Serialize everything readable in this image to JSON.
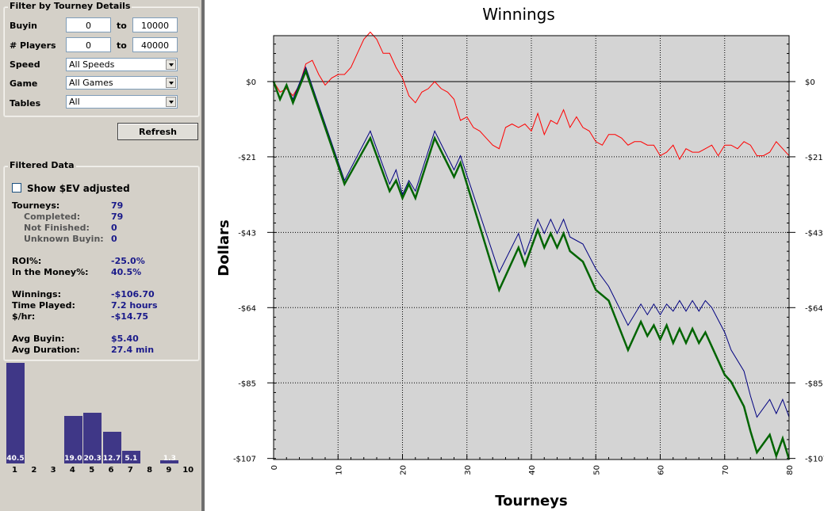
{
  "filter": {
    "title": "Filter by Tourney Details",
    "buyin_label": "Buyin",
    "buyin_min": "0",
    "buyin_to": "to",
    "buyin_max": "10000",
    "players_label": "# Players",
    "players_min": "0",
    "players_to": "to",
    "players_max": "40000",
    "speed_label": "Speed",
    "speed_value": "All Speeds",
    "game_label": "Game",
    "game_value": "All Games",
    "tables_label": "Tables",
    "tables_value": "All",
    "refresh_label": "Refresh"
  },
  "filtered": {
    "title": "Filtered Data",
    "ev_label": "Show $EV adjusted",
    "ev_checked": false,
    "stats": [
      {
        "label": "Tourneys:",
        "value": "79"
      },
      {
        "label": "Completed:",
        "value": "79"
      },
      {
        "label": "Not Finished:",
        "value": "0"
      },
      {
        "label": "Unknown Buyin:",
        "value": "0"
      },
      {
        "label": "ROI%:",
        "value": "-25.0%"
      },
      {
        "label": "In the Money%:",
        "value": "40.5%"
      },
      {
        "label": "Winnings:",
        "value": "-$106.70"
      },
      {
        "label": "Time Played:",
        "value": "7.2 hours"
      },
      {
        "label": "$/hr:",
        "value": "-$14.75"
      },
      {
        "label": "Avg Buyin:",
        "value": "$5.40"
      },
      {
        "label": "Avg Duration:",
        "value": "27.4 min"
      }
    ]
  },
  "histogram": {
    "color": "#3f3787",
    "bins": [
      {
        "x": "1",
        "value": 40.5,
        "label": "40.5"
      },
      {
        "x": "2",
        "value": 0,
        "label": ""
      },
      {
        "x": "3",
        "value": 0,
        "label": ""
      },
      {
        "x": "4",
        "value": 19.0,
        "label": "19.0"
      },
      {
        "x": "5",
        "value": 20.3,
        "label": "20.3"
      },
      {
        "x": "6",
        "value": 12.7,
        "label": "12.7"
      },
      {
        "x": "7",
        "value": 5.1,
        "label": "5.1"
      },
      {
        "x": "8",
        "value": 0,
        "label": ""
      },
      {
        "x": "9",
        "value": 1.3,
        "label": "1.3"
      },
      {
        "x": "10",
        "value": 0,
        "label": ""
      }
    ]
  },
  "chart_data": {
    "type": "line",
    "title": "Winnings",
    "xlabel": "Tourneys",
    "ylabel": "Dollars",
    "xlim": [
      0,
      80
    ],
    "ylim": [
      -107,
      13
    ],
    "x_ticks": [
      "0",
      "10",
      "20",
      "30",
      "40",
      "50",
      "60",
      "70",
      "80"
    ],
    "y_ticks": [
      {
        "value": 0,
        "label": "$0"
      },
      {
        "value": -21.3,
        "label": "-$21"
      },
      {
        "value": -42.7,
        "label": "-$43"
      },
      {
        "value": -64.0,
        "label": "-$64"
      },
      {
        "value": -85.3,
        "label": "-$85"
      },
      {
        "value": -106.7,
        "label": "-$107"
      }
    ],
    "grid": true,
    "background": "#d4d4d4",
    "series": [
      {
        "color": "#ff0000",
        "width": 1,
        "points": [
          [
            0,
            0
          ],
          [
            1,
            -3
          ],
          [
            2,
            -2
          ],
          [
            3,
            -4
          ],
          [
            4,
            -1
          ],
          [
            5,
            5
          ],
          [
            6,
            6
          ],
          [
            7,
            2
          ],
          [
            8,
            -1
          ],
          [
            9,
            1
          ],
          [
            10,
            2
          ],
          [
            11,
            2
          ],
          [
            12,
            4
          ],
          [
            13,
            8
          ],
          [
            14,
            12
          ],
          [
            15,
            14
          ],
          [
            16,
            12
          ],
          [
            17,
            8
          ],
          [
            18,
            8
          ],
          [
            19,
            4
          ],
          [
            20,
            1
          ],
          [
            21,
            -4
          ],
          [
            22,
            -6
          ],
          [
            23,
            -3
          ],
          [
            24,
            -2
          ],
          [
            25,
            0
          ],
          [
            26,
            -2
          ],
          [
            27,
            -3
          ],
          [
            28,
            -5
          ],
          [
            29,
            -11
          ],
          [
            30,
            -10
          ],
          [
            31,
            -13
          ],
          [
            32,
            -14
          ],
          [
            33,
            -16
          ],
          [
            34,
            -18
          ],
          [
            35,
            -19
          ],
          [
            36,
            -13
          ],
          [
            37,
            -12
          ],
          [
            38,
            -13
          ],
          [
            39,
            -12
          ],
          [
            40,
            -14
          ],
          [
            41,
            -9
          ],
          [
            42,
            -15
          ],
          [
            43,
            -11
          ],
          [
            44,
            -12
          ],
          [
            45,
            -8
          ],
          [
            46,
            -13
          ],
          [
            47,
            -10
          ],
          [
            48,
            -13
          ],
          [
            49,
            -14
          ],
          [
            50,
            -17
          ],
          [
            51,
            -18
          ],
          [
            52,
            -15
          ],
          [
            53,
            -15
          ],
          [
            54,
            -16
          ],
          [
            55,
            -18
          ],
          [
            56,
            -17
          ],
          [
            57,
            -17
          ],
          [
            58,
            -18
          ],
          [
            59,
            -18
          ],
          [
            60,
            -21
          ],
          [
            61,
            -20
          ],
          [
            62,
            -18
          ],
          [
            63,
            -22
          ],
          [
            64,
            -19
          ],
          [
            65,
            -20
          ],
          [
            66,
            -20
          ],
          [
            67,
            -19
          ],
          [
            68,
            -18
          ],
          [
            69,
            -21
          ],
          [
            70,
            -18
          ],
          [
            71,
            -18
          ],
          [
            72,
            -19
          ],
          [
            73,
            -17
          ],
          [
            74,
            -18
          ],
          [
            75,
            -21
          ],
          [
            76,
            -21
          ],
          [
            77,
            -20
          ],
          [
            78,
            -17
          ],
          [
            79,
            -19
          ],
          [
            80,
            -21
          ]
        ]
      },
      {
        "color": "#000080",
        "width": 1,
        "points": [
          [
            0,
            0
          ],
          [
            1,
            -5
          ],
          [
            2,
            -1
          ],
          [
            3,
            -5
          ],
          [
            5,
            4
          ],
          [
            11,
            -28
          ],
          [
            15,
            -14
          ],
          [
            18,
            -29
          ],
          [
            19,
            -25
          ],
          [
            20,
            -32
          ],
          [
            21,
            -28
          ],
          [
            22,
            -31
          ],
          [
            25,
            -14
          ],
          [
            28,
            -25
          ],
          [
            29,
            -21
          ],
          [
            35,
            -54
          ],
          [
            38,
            -43
          ],
          [
            39,
            -49
          ],
          [
            41,
            -39
          ],
          [
            42,
            -43
          ],
          [
            43,
            -39
          ],
          [
            44,
            -43
          ],
          [
            45,
            -39
          ],
          [
            46,
            -44
          ],
          [
            48,
            -46
          ],
          [
            50,
            -53
          ],
          [
            52,
            -58
          ],
          [
            55,
            -69
          ],
          [
            57,
            -63
          ],
          [
            58,
            -66
          ],
          [
            59,
            -63
          ],
          [
            60,
            -66
          ],
          [
            61,
            -63
          ],
          [
            62,
            -65
          ],
          [
            63,
            -62
          ],
          [
            64,
            -65
          ],
          [
            65,
            -62
          ],
          [
            66,
            -65
          ],
          [
            67,
            -62
          ],
          [
            68,
            -64
          ],
          [
            70,
            -71
          ],
          [
            71,
            -76
          ],
          [
            73,
            -82
          ],
          [
            74,
            -89
          ],
          [
            75,
            -95
          ],
          [
            77,
            -90
          ],
          [
            78,
            -94
          ],
          [
            79,
            -90
          ],
          [
            80,
            -95
          ]
        ]
      },
      {
        "color": "#006400",
        "width": 2.5,
        "points": [
          [
            0,
            0
          ],
          [
            1,
            -5
          ],
          [
            2,
            -1
          ],
          [
            3,
            -6
          ],
          [
            5,
            3
          ],
          [
            11,
            -29
          ],
          [
            15,
            -16
          ],
          [
            18,
            -31
          ],
          [
            19,
            -28
          ],
          [
            20,
            -33
          ],
          [
            21,
            -29
          ],
          [
            22,
            -33
          ],
          [
            25,
            -16
          ],
          [
            28,
            -27
          ],
          [
            29,
            -23
          ],
          [
            35,
            -59
          ],
          [
            38,
            -47
          ],
          [
            39,
            -52
          ],
          [
            41,
            -42
          ],
          [
            42,
            -47
          ],
          [
            43,
            -43
          ],
          [
            44,
            -47
          ],
          [
            45,
            -43
          ],
          [
            46,
            -48
          ],
          [
            48,
            -51
          ],
          [
            50,
            -59
          ],
          [
            52,
            -62
          ],
          [
            55,
            -76
          ],
          [
            57,
            -68
          ],
          [
            58,
            -72
          ],
          [
            59,
            -69
          ],
          [
            60,
            -73
          ],
          [
            61,
            -69
          ],
          [
            62,
            -74
          ],
          [
            63,
            -70
          ],
          [
            64,
            -74
          ],
          [
            65,
            -70
          ],
          [
            66,
            -74
          ],
          [
            67,
            -71
          ],
          [
            68,
            -75
          ],
          [
            70,
            -83
          ],
          [
            71,
            -85
          ],
          [
            73,
            -92
          ],
          [
            74,
            -99
          ],
          [
            75,
            -105
          ],
          [
            77,
            -100
          ],
          [
            78,
            -106
          ],
          [
            79,
            -101
          ],
          [
            80,
            -107
          ]
        ]
      }
    ]
  }
}
